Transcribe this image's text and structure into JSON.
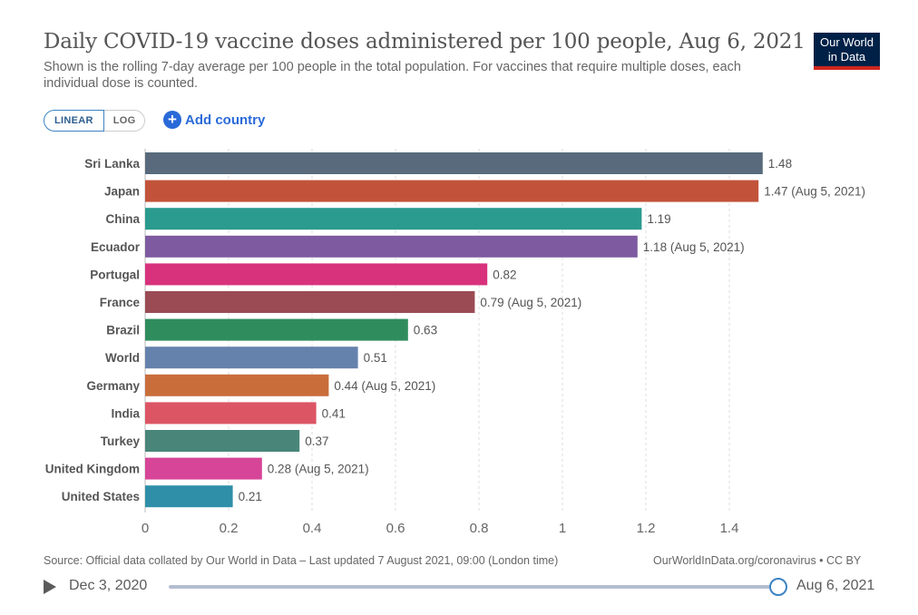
{
  "header": {
    "title": "Daily COVID-19 vaccine doses administered per 100 people, Aug 6, 2021",
    "subtitle": "Shown is the rolling 7-day average per 100 people in the total population. For vaccines that require multiple doses, each individual dose is counted.",
    "logo_line1": "Our World",
    "logo_line2": "in Data"
  },
  "controls": {
    "linear_label": "LINEAR",
    "log_label": "LOG",
    "add_country_label": "Add country",
    "add_icon_glyph": "+"
  },
  "colors": {
    "logo_bg": "#002147",
    "logo_accent": "#ce261e",
    "link": "#2a6ad8"
  },
  "chart_data": {
    "type": "bar",
    "orientation": "horizontal",
    "categories": [
      "Sri Lanka",
      "Japan",
      "China",
      "Ecuador",
      "Portugal",
      "France",
      "Brazil",
      "World",
      "Germany",
      "India",
      "Turkey",
      "United Kingdom",
      "United States"
    ],
    "values": [
      1.48,
      1.47,
      1.19,
      1.18,
      0.82,
      0.79,
      0.63,
      0.51,
      0.44,
      0.41,
      0.37,
      0.28,
      0.21
    ],
    "value_labels": [
      "1.48",
      "1.47 (Aug 5, 2021)",
      "1.19",
      "1.18 (Aug 5, 2021)",
      "0.82",
      "0.79 (Aug 5, 2021)",
      "0.63",
      "0.51",
      "0.44 (Aug 5, 2021)",
      "0.41",
      "0.37",
      "0.28 (Aug 5, 2021)",
      "0.21"
    ],
    "colors": [
      "#586a7c",
      "#c2533a",
      "#2a9b8e",
      "#7e5ba0",
      "#d8327d",
      "#9b4b54",
      "#2f8d5d",
      "#6582ad",
      "#c96e3b",
      "#dc5565",
      "#498679",
      "#d64597",
      "#2f8fa8"
    ],
    "xticks": [
      0,
      0.2,
      0.4,
      0.6,
      0.8,
      1,
      1.2,
      1.4
    ],
    "xtick_labels": [
      "0",
      "0.2",
      "0.4",
      "0.6",
      "0.8",
      "1",
      "1.2",
      "1.4"
    ],
    "xlim": [
      0,
      1.5
    ],
    "grid": "vertical-dashed"
  },
  "footer": {
    "source": "Source: Official data collated by Our World in Data – Last updated 7 August 2021, 09:00 (London time)",
    "license": "OurWorldInData.org/coronavirus • CC BY"
  },
  "timeline": {
    "start_date": "Dec 3, 2020",
    "end_date": "Aug 6, 2021",
    "position": 1.0
  }
}
